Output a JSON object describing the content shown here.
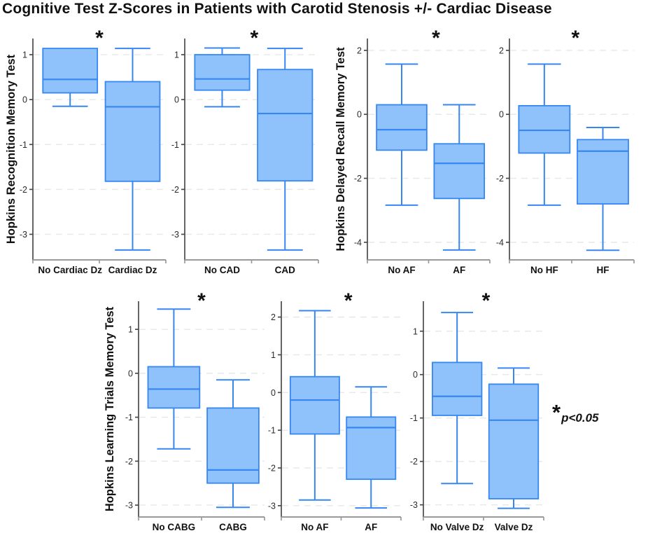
{
  "title": "Cognitive Test Z-Scores in Patients with Carotid Stenosis +/- Cardiac Disease",
  "significance_note": {
    "symbol": "*",
    "text": "p<0.05"
  },
  "style": {
    "box_fill": "#8FC1FA",
    "box_stroke": "#3787F2",
    "grid_color": "#E8E8E8",
    "y_axis_color": "#4A4A4A",
    "x_axis_color": "#9A9A9A",
    "text_color": "#111111",
    "tick_text_color": "#2B2B2B"
  },
  "chart_data": [
    {
      "type": "box",
      "ylabel": "Hopkins Recognition Memory Test",
      "yticks": [
        1,
        0,
        -1,
        -2,
        -3
      ],
      "ylim": [
        -3.57,
        1.36
      ],
      "grid": true,
      "significant": true,
      "significance_symbol": "*",
      "groups": [
        {
          "label": "No Cardiac Dz",
          "whisker_low": -0.15,
          "q1": 0.15,
          "median": 0.45,
          "q3": 1.14,
          "whisker_high": 1.14
        },
        {
          "label": "Cardiac Dz",
          "whisker_low": -3.35,
          "q1": -1.82,
          "median": -0.16,
          "q3": 0.4,
          "whisker_high": 1.14
        }
      ]
    },
    {
      "type": "box",
      "ylabel": "",
      "yticks": [
        1,
        0,
        -1,
        -2,
        -3
      ],
      "ylim": [
        -3.57,
        1.36
      ],
      "grid": true,
      "significant": true,
      "significance_symbol": "*",
      "groups": [
        {
          "label": "No CAD",
          "whisker_low": -0.16,
          "q1": 0.21,
          "median": 0.46,
          "q3": 1.0,
          "whisker_high": 1.15
        },
        {
          "label": "CAD",
          "whisker_low": -3.35,
          "q1": -1.81,
          "median": -0.31,
          "q3": 0.67,
          "whisker_high": 1.14
        }
      ]
    },
    {
      "type": "box",
      "ylabel": "Hopkins Delayed Recall Memory Test",
      "yticks": [
        2,
        0,
        -2,
        -4
      ],
      "ylim": [
        -4.55,
        2.37
      ],
      "grid": true,
      "significant": true,
      "significance_symbol": "*",
      "groups": [
        {
          "label": "No AF",
          "whisker_low": -2.84,
          "q1": -1.12,
          "median": -0.48,
          "q3": 0.3,
          "whisker_high": 1.57
        },
        {
          "label": "AF",
          "whisker_low": -4.24,
          "q1": -2.63,
          "median": -1.53,
          "q3": -0.92,
          "whisker_high": 0.3
        }
      ]
    },
    {
      "type": "box",
      "ylabel": "",
      "yticks": [
        2,
        0,
        -2,
        -4
      ],
      "ylim": [
        -4.55,
        2.37
      ],
      "grid": true,
      "significant": true,
      "significance_symbol": "*",
      "groups": [
        {
          "label": "No HF",
          "whisker_low": -2.84,
          "q1": -1.21,
          "median": -0.5,
          "q3": 0.27,
          "whisker_high": 1.57
        },
        {
          "label": "HF",
          "whisker_low": -4.25,
          "q1": -2.8,
          "median": -1.15,
          "q3": -0.79,
          "whisker_high": -0.41
        }
      ]
    },
    {
      "type": "box",
      "ylabel": "Hopkins Learning Trials Memory Test",
      "yticks": [
        1,
        0,
        -1,
        -2,
        -3
      ],
      "ylim": [
        -3.27,
        1.64
      ],
      "grid": true,
      "significant": true,
      "significance_symbol": "*",
      "groups": [
        {
          "label": "No CABG",
          "whisker_low": -1.72,
          "q1": -0.79,
          "median": -0.36,
          "q3": 0.15,
          "whisker_high": 1.46
        },
        {
          "label": "CABG",
          "whisker_low": -3.05,
          "q1": -2.5,
          "median": -2.2,
          "q3": -0.79,
          "whisker_high": -0.15
        }
      ]
    },
    {
      "type": "box",
      "ylabel": "",
      "yticks": [
        2,
        1,
        0,
        -1,
        -2,
        -3
      ],
      "ylim": [
        -3.3,
        2.42
      ],
      "grid": true,
      "significant": true,
      "significance_symbol": "*",
      "groups": [
        {
          "label": "No AF",
          "whisker_low": -2.85,
          "q1": -1.1,
          "median": -0.2,
          "q3": 0.42,
          "whisker_high": 2.17
        },
        {
          "label": "AF",
          "whisker_low": -3.06,
          "q1": -2.3,
          "median": -0.93,
          "q3": -0.65,
          "whisker_high": 0.15
        }
      ]
    },
    {
      "type": "box",
      "ylabel": "",
      "yticks": [
        1,
        0,
        -1,
        -2,
        -3
      ],
      "ylim": [
        -3.28,
        1.69
      ],
      "grid": true,
      "significant": true,
      "significance_symbol": "*",
      "groups": [
        {
          "label": "No Valve Dz",
          "whisker_low": -2.51,
          "q1": -0.94,
          "median": -0.5,
          "q3": 0.28,
          "whisker_high": 1.43
        },
        {
          "label": "Valve Dz",
          "whisker_low": -3.08,
          "q1": -2.86,
          "median": -1.05,
          "q3": -0.22,
          "whisker_high": 0.15
        }
      ]
    }
  ]
}
